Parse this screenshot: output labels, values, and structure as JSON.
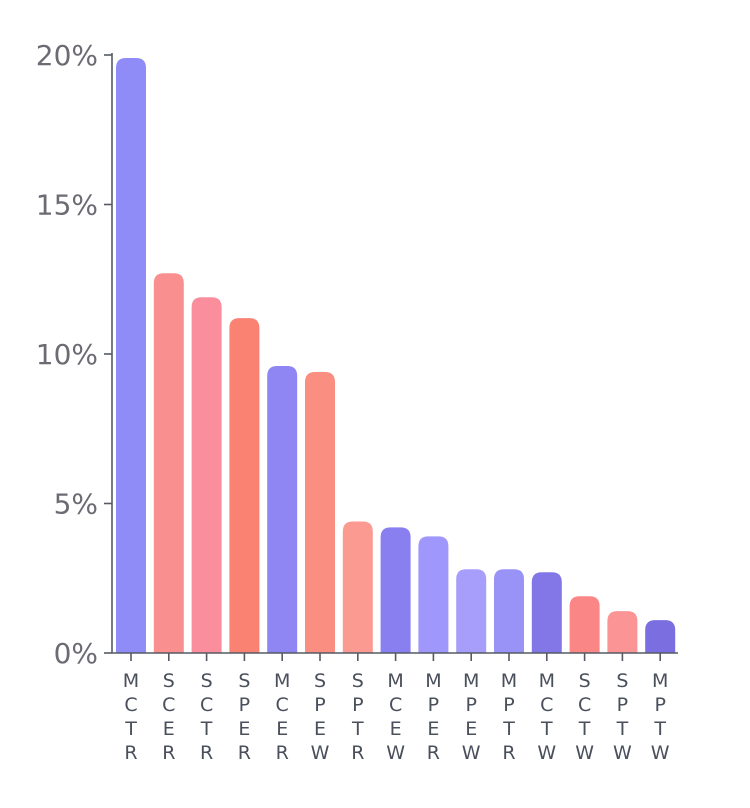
{
  "chart_data": {
    "type": "bar",
    "title": "",
    "xlabel": "",
    "ylabel": "",
    "ylim": [
      0,
      20
    ],
    "y_ticks": [
      0,
      5,
      10,
      15,
      20
    ],
    "y_tick_labels": [
      "0%",
      "5%",
      "10%",
      "15%",
      "20%"
    ],
    "grid": false,
    "categories": [
      "MCTR",
      "SCER",
      "SCTR",
      "SPER",
      "MCER",
      "SPEW",
      "SPTR",
      "MCEW",
      "MPER",
      "MPEW",
      "MPTR",
      "MCTW",
      "SCTW",
      "SPTW",
      "MPTW"
    ],
    "values": [
      19.9,
      12.7,
      11.9,
      11.2,
      9.6,
      9.4,
      4.4,
      4.2,
      3.9,
      2.8,
      2.8,
      2.7,
      1.9,
      1.4,
      1.1
    ],
    "colors": [
      "#8f8bf7",
      "#f98f8f",
      "#fa8e9d",
      "#fa8272",
      "#8f86f3",
      "#fa8e80",
      "#fb9a91",
      "#897ff0",
      "#9f97fb",
      "#a69efa",
      "#9992f7",
      "#8377e8",
      "#fb8686",
      "#fb9595",
      "#7b6ee0"
    ]
  }
}
